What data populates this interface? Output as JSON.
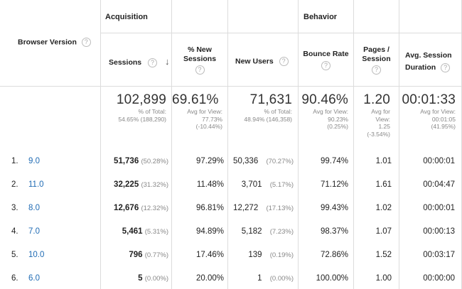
{
  "header": {
    "dimension_label": "Browser Version",
    "group_acquisition": "Acquisition",
    "group_behavior": "Behavior",
    "col_sessions": "Sessions",
    "col_new_sessions_line1": "% New",
    "col_new_sessions_line2": "Sessions",
    "col_new_users": "New Users",
    "col_bounce_rate": "Bounce Rate",
    "col_pages_line1": "Pages /",
    "col_pages_line2": "Session",
    "col_duration_line1": "Avg. Session",
    "col_duration_line2": "Duration",
    "help_glyph": "?",
    "sort_glyph": "↓"
  },
  "totals": {
    "sessions": {
      "value": "102,899",
      "line1": "% of Total:",
      "line2": "54.65% (188,290)"
    },
    "new_sessions": {
      "value": "69.61%",
      "line1": "Avg for View:",
      "line2": "77.73%",
      "line3": "(-10.44%)"
    },
    "new_users": {
      "value": "71,631",
      "line1": "% of Total:",
      "line2": "48.94% (146,358)"
    },
    "bounce_rate": {
      "value": "90.46%",
      "line1": "Avg for View:",
      "line2": "90.23%",
      "line3": "(0.25%)"
    },
    "pages": {
      "value": "1.20",
      "line1": "Avg for",
      "line2": "View:",
      "line3": "1.25",
      "line4": "(-3.54%)"
    },
    "duration": {
      "value": "00:01:33",
      "line1": "Avg for View:",
      "line2": "00:01:05",
      "line3": "(41.95%)"
    }
  },
  "rows": [
    {
      "idx": "1.",
      "version": "9.0",
      "sessions": "51,736",
      "sessions_pct": "(50.28%)",
      "new_sessions": "97.29%",
      "new_users": "50,336",
      "new_users_pct": "(70.27%)",
      "bounce": "99.74%",
      "pages": "1.01",
      "duration": "00:00:01"
    },
    {
      "idx": "2.",
      "version": "11.0",
      "sessions": "32,225",
      "sessions_pct": "(31.32%)",
      "new_sessions": "11.48%",
      "new_users": "3,701",
      "new_users_pct": "(5.17%)",
      "bounce": "71.12%",
      "pages": "1.61",
      "duration": "00:04:47"
    },
    {
      "idx": "3.",
      "version": "8.0",
      "sessions": "12,676",
      "sessions_pct": "(12.32%)",
      "new_sessions": "96.81%",
      "new_users": "12,272",
      "new_users_pct": "(17.13%)",
      "bounce": "99.43%",
      "pages": "1.02",
      "duration": "00:00:01"
    },
    {
      "idx": "4.",
      "version": "7.0",
      "sessions": "5,461",
      "sessions_pct": "(5.31%)",
      "new_sessions": "94.89%",
      "new_users": "5,182",
      "new_users_pct": "(7.23%)",
      "bounce": "98.37%",
      "pages": "1.07",
      "duration": "00:00:13"
    },
    {
      "idx": "5.",
      "version": "10.0",
      "sessions": "796",
      "sessions_pct": "(0.77%)",
      "new_sessions": "17.46%",
      "new_users": "139",
      "new_users_pct": "(0.19%)",
      "bounce": "72.86%",
      "pages": "1.52",
      "duration": "00:03:17"
    },
    {
      "idx": "6.",
      "version": "6.0",
      "sessions": "5",
      "sessions_pct": "(0.00%)",
      "new_sessions": "20.00%",
      "new_users": "1",
      "new_users_pct": "(0.00%)",
      "bounce": "100.00%",
      "pages": "1.00",
      "duration": "00:00:00"
    }
  ]
}
